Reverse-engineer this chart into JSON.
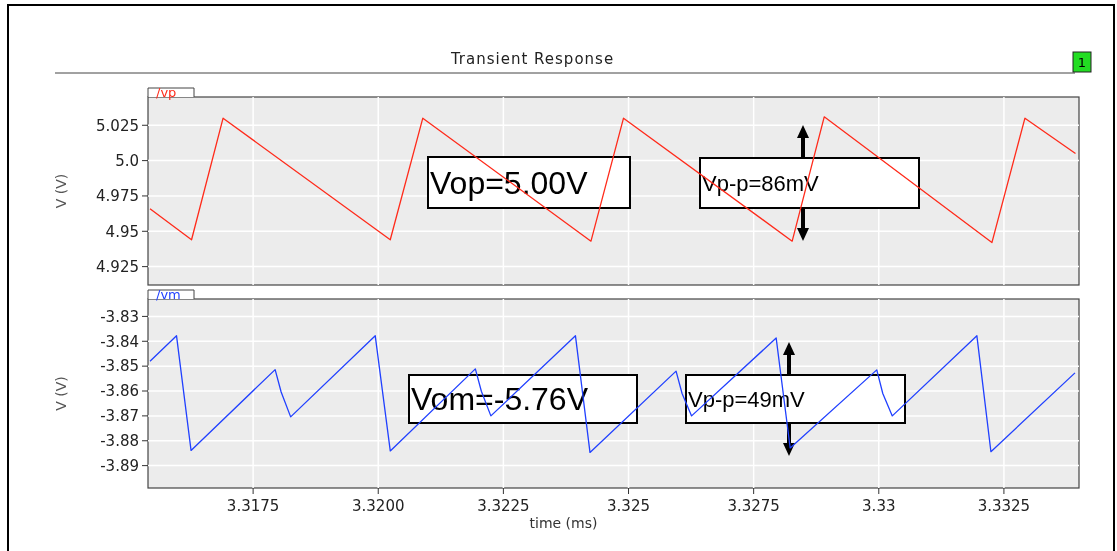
{
  "chart_data": [
    {
      "type": "line",
      "title": "Transient Response",
      "ylabel": "V (V)",
      "legend": "top left",
      "grid": true,
      "tick_labels": "y",
      "line_style": "solid",
      "marker": "none",
      "annotations": [
        "1",
        "Vop=5.00V",
        "Vp-p=86mV"
      ],
      "xlim": [
        3.3154,
        3.334
      ],
      "xticks": [
        3.3175,
        3.32,
        3.3225,
        3.325,
        3.3275,
        3.33,
        3.3325
      ],
      "ylim": [
        4.912,
        5.045
      ],
      "yticks": [
        5.025,
        {
          "value": 5.0,
          "label": "5.0"
        },
        4.975,
        4.95,
        4.925
      ],
      "series": [
        {
          "name": "/vp",
          "color": "#ff2a1a",
          "x": [
            3.31544,
            3.31627,
            3.3169,
            3.32024,
            3.32089,
            3.32425,
            3.3249,
            3.32827,
            3.32891,
            3.33226,
            3.33292,
            3.33393
          ],
          "values": [
            4.966,
            4.944,
            5.03,
            4.944,
            5.03,
            4.943,
            5.03,
            4.943,
            5.031,
            4.942,
            5.03,
            5.005
          ]
        }
      ]
    },
    {
      "type": "line",
      "xlabel": "time (ms)",
      "ylabel": "V (V)",
      "legend": "top left",
      "grid": true,
      "line_style": "solid",
      "marker": "none",
      "annotations": [
        "Vom=-5.76V",
        "Vp-p=49mV"
      ],
      "xlim": [
        3.3154,
        3.334
      ],
      "xticks": [
        3.3175,
        {
          "value": 3.32,
          "label": "3.3200"
        },
        3.3225,
        3.325,
        3.3275,
        3.33,
        3.3325
      ],
      "ylim": [
        -3.899,
        -3.823
      ],
      "yticks": [
        -3.83,
        -3.84,
        -3.85,
        -3.86,
        -3.87,
        -3.88,
        -3.89
      ],
      "series": [
        {
          "name": "/vm",
          "color": "#2040ff",
          "x": [
            3.31544,
            3.31597,
            3.31626,
            3.31794,
            3.31806,
            3.31825,
            3.31994,
            3.32024,
            3.32194,
            3.32206,
            3.32225,
            3.32394,
            3.32423,
            3.32595,
            3.32607,
            3.32626,
            3.32795,
            3.32823,
            3.32996,
            3.33008,
            3.33027,
            3.33196,
            3.33224,
            3.33392
          ],
          "values": [
            -3.848,
            -3.8378,
            -3.8839,
            -3.8514,
            -3.8604,
            -3.8704,
            -3.8378,
            -3.8841,
            -3.8511,
            -3.8601,
            -3.87,
            -3.8378,
            -3.8847,
            -3.852,
            -3.861,
            -3.87,
            -3.8387,
            -3.8829,
            -3.8515,
            -3.861,
            -3.87,
            -3.8378,
            -3.8844,
            -3.8527
          ]
        }
      ]
    }
  ]
}
